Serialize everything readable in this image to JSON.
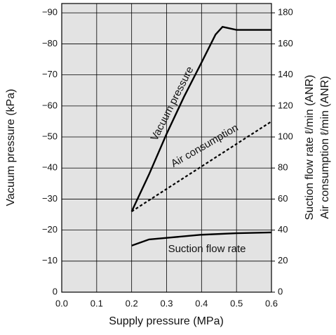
{
  "chart_data": {
    "type": "line",
    "x_label": "Supply pressure (MPa)",
    "y_label": "Vacuum pressure (kPa)",
    "y2_labels": [
      "Suction flow rate ℓ/min (ANR)",
      "Air consumption ℓ/min (ANR)"
    ],
    "annotations": [
      "Vacuum pressure",
      "Air consumption",
      "Suction flow rate"
    ],
    "xlim": [
      0,
      0.6
    ],
    "xticks": [
      {
        "value": 0,
        "label": "0.0"
      },
      0.1,
      0.2,
      0.3,
      0.4,
      0.5,
      0.6
    ],
    "ylim": [
      0,
      -93
    ],
    "yticks": [
      0,
      {
        "value": -10,
        "label": "−10"
      },
      {
        "value": -20,
        "label": "−20"
      },
      {
        "value": -30,
        "label": "−30"
      },
      {
        "value": -40,
        "label": "−40"
      },
      {
        "value": -50,
        "label": "−50"
      },
      {
        "value": -60,
        "label": "−60"
      },
      {
        "value": -70,
        "label": "−70"
      },
      {
        "value": -80,
        "label": "−80"
      },
      {
        "value": -90,
        "label": "−90"
      }
    ],
    "y2lim": [
      0,
      186
    ],
    "y2ticks": [
      0,
      20,
      40,
      60,
      80,
      100,
      120,
      140,
      160,
      180
    ],
    "grid": true,
    "background": "#e3e3e3",
    "series": [
      {
        "name": "Vacuum pressure",
        "color": "#000000",
        "dash": false,
        "x": [
          0.2,
          0.25,
          0.3,
          0.35,
          0.4,
          0.44,
          0.46,
          0.5,
          0.6
        ],
        "values": [
          -26,
          -38,
          -51,
          -63,
          -74,
          -83,
          -85.5,
          -84.5,
          -84.5
        ]
      },
      {
        "name": "Air consumption",
        "color": "#000000",
        "dash": true,
        "axis": "y2",
        "x": [
          0.2,
          0.6
        ],
        "values": [
          52,
          110
        ]
      },
      {
        "name": "Suction flow rate",
        "color": "#000000",
        "dash": false,
        "axis": "y2",
        "x": [
          0.2,
          0.25,
          0.3,
          0.4,
          0.5,
          0.6
        ],
        "values": [
          30,
          34,
          35,
          37,
          38,
          38.5
        ]
      }
    ]
  }
}
